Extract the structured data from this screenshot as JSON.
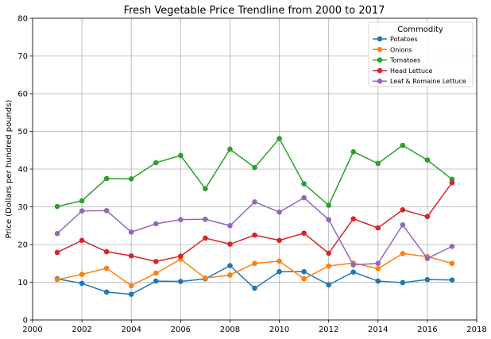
{
  "chart_data": {
    "type": "line",
    "title": "Fresh Vegetable Price Trendline from 2000 to 2017",
    "xlabel": "",
    "ylabel": "Price (Dollars per hundred pounds)",
    "xlim": [
      2000,
      2018
    ],
    "ylim": [
      0,
      80
    ],
    "xticks": [
      2000,
      2002,
      2004,
      2006,
      2008,
      2010,
      2012,
      2014,
      2016,
      2018
    ],
    "yticks": [
      0,
      10,
      20,
      30,
      40,
      50,
      60,
      70,
      80
    ],
    "grid": true,
    "legend": {
      "title": "Commodity",
      "placement": "top-right"
    },
    "x": [
      2001,
      2002,
      2003,
      2004,
      2005,
      2006,
      2007,
      2008,
      2009,
      2010,
      2011,
      2012,
      2013,
      2014,
      2015,
      2016,
      2017
    ],
    "series": [
      {
        "name": "Potatoes",
        "color": "#1f77b4",
        "values": [
          10.9,
          9.7,
          7.4,
          6.8,
          10.3,
          10.2,
          10.9,
          14.4,
          8.4,
          12.8,
          12.8,
          9.3,
          12.7,
          10.3,
          9.9,
          10.7,
          10.6
        ]
      },
      {
        "name": "Onions",
        "color": "#ff7f0e",
        "values": [
          10.7,
          12.1,
          13.7,
          9.1,
          12.4,
          16.1,
          11.1,
          11.9,
          15.0,
          15.6,
          10.9,
          14.3,
          15.1,
          13.6,
          17.6,
          16.8,
          15.0
        ]
      },
      {
        "name": "Tomatoes",
        "color": "#2ca02c",
        "values": [
          30.1,
          31.6,
          37.5,
          37.4,
          41.7,
          43.6,
          34.8,
          45.3,
          40.4,
          48.1,
          36.1,
          30.4,
          44.6,
          41.5,
          46.3,
          42.4,
          37.3
        ]
      },
      {
        "name": "Head Lettuce",
        "color": "#d62728",
        "values": [
          17.9,
          21.1,
          18.1,
          17.0,
          15.5,
          16.9,
          21.7,
          20.1,
          22.5,
          21.1,
          23.0,
          17.7,
          26.8,
          24.4,
          29.2,
          27.4,
          36.4
        ]
      },
      {
        "name": "Leaf & Romaine Lettuce",
        "color": "#9467bd",
        "values": [
          22.9,
          28.9,
          29.0,
          23.3,
          25.5,
          26.6,
          26.7,
          25.0,
          31.3,
          28.6,
          32.4,
          26.6,
          14.6,
          15.0,
          25.2,
          16.3,
          19.5
        ]
      }
    ]
  }
}
